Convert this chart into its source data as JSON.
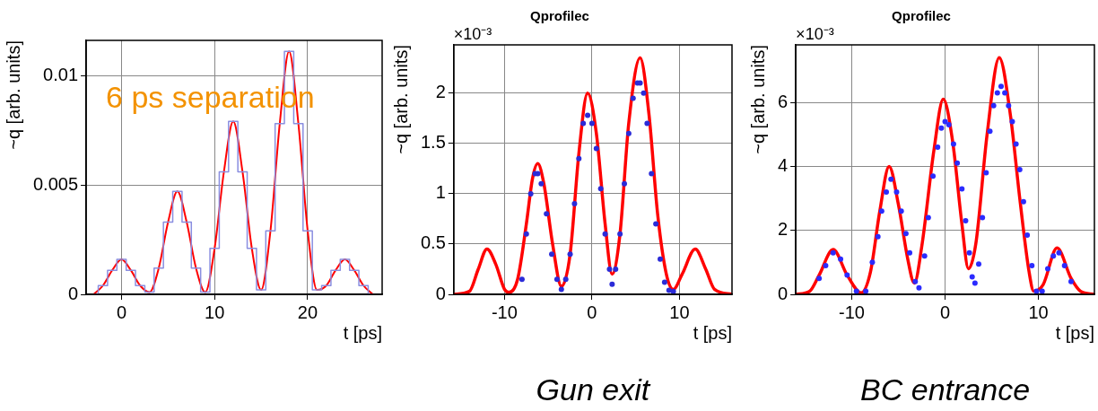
{
  "chart_data": [
    {
      "type": "line",
      "xlabel": "t [ps]",
      "ylabel": "~q [arb. units]",
      "annotations": [
        "6 ps separation"
      ],
      "xlim": [
        -3.8,
        28
      ],
      "xticks": [
        0,
        10,
        20
      ],
      "ylim": [
        0,
        0.0116
      ],
      "yticks": [
        0,
        0.005,
        0.01
      ],
      "grid": true,
      "legend": false,
      "marker": "none",
      "line_style": "solid",
      "series": [
        {
          "type": "step",
          "color": "#8a8ee0",
          "x": [
            -3,
            -2,
            -1,
            0,
            1,
            2,
            3,
            4,
            5,
            6,
            7,
            8,
            9,
            10,
            11,
            12,
            13,
            14,
            15,
            16,
            17,
            18,
            19,
            20,
            21,
            22,
            23,
            24,
            25,
            26,
            27
          ],
          "values": [
            0,
            0.0004,
            0.0011,
            0.0016,
            0.0011,
            0.0004,
            0.0001,
            0.0012,
            0.0033,
            0.0047,
            0.0033,
            0.0012,
            0.0001,
            0.0021,
            0.0056,
            0.0079,
            0.0056,
            0.0021,
            0.0002,
            0.0029,
            0.0078,
            0.0111,
            0.0078,
            0.0029,
            0.0002,
            0.0004,
            0.0011,
            0.0016,
            0.0011,
            0.0004,
            0
          ]
        },
        {
          "type": "line",
          "color": "#ff0000",
          "x": [
            -3,
            -2,
            -1,
            0,
            1,
            2,
            3,
            4,
            5,
            6,
            7,
            8,
            9,
            10,
            11,
            12,
            13,
            14,
            15,
            16,
            17,
            18,
            19,
            20,
            21,
            22,
            23,
            24,
            25,
            26,
            27
          ],
          "values": [
            0,
            0.0004,
            0.0011,
            0.0016,
            0.0011,
            0.0004,
            0.0001,
            0.0012,
            0.0033,
            0.0047,
            0.0033,
            0.0012,
            0.0001,
            0.0021,
            0.0056,
            0.0079,
            0.0056,
            0.0021,
            0.0002,
            0.0029,
            0.0078,
            0.0111,
            0.0078,
            0.0029,
            0.0002,
            0.0004,
            0.0011,
            0.0016,
            0.0011,
            0.0004,
            0
          ]
        }
      ]
    },
    {
      "type": "line",
      "title": "Qprofilec",
      "xlabel": "t [ps]",
      "ylabel": "~q [arb. units]",
      "annotations": [
        "×10⁻³",
        "Gun exit"
      ],
      "xlim": [
        -15.8,
        16
      ],
      "xticks": [
        -10,
        0,
        10
      ],
      "ylim": [
        0,
        2.48
      ],
      "yticks": [
        0,
        0.5,
        1,
        1.5,
        2
      ],
      "grid": true,
      "legend": false,
      "line_style": "solid",
      "series": [
        {
          "type": "scatter",
          "color": "#2b2bd8",
          "marker": "circle",
          "x": [
            -8,
            -7.5,
            -7,
            -6.5,
            -6.2,
            -5.8,
            -5.2,
            -4.6,
            -4,
            -3.5,
            -3,
            -2.5,
            -2,
            -1.5,
            -1,
            -0.5,
            0,
            0.5,
            1,
            1.5,
            2,
            2.3,
            2.7,
            3.2,
            3.7,
            4.2,
            4.7,
            5.2,
            5.5,
            5.9,
            6.3,
            6.8,
            7.3,
            7.8,
            8.3,
            8.8,
            9.3
          ],
          "values": [
            0.15,
            0.6,
            1.0,
            1.2,
            1.2,
            1.1,
            0.8,
            0.4,
            0.15,
            0.05,
            0.15,
            0.4,
            0.9,
            1.35,
            1.7,
            1.78,
            1.7,
            1.45,
            1.05,
            0.6,
            0.25,
            0.1,
            0.25,
            0.6,
            1.1,
            1.6,
            1.95,
            2.1,
            2.1,
            2.0,
            1.7,
            1.2,
            0.7,
            0.35,
            0.12,
            0.04,
            0.03
          ]
        },
        {
          "type": "line",
          "color": "#ff0000",
          "marker": "none",
          "x": [
            -15.8,
            -14,
            -13,
            -12,
            -11,
            -10,
            -9.5,
            -8.5,
            -7.5,
            -6.8,
            -6.2,
            -5.5,
            -4.5,
            -3.5,
            -2.5,
            -1.5,
            -0.5,
            0.5,
            1.5,
            2.3,
            3.2,
            4.2,
            5.5,
            6.5,
            7.5,
            8.5,
            9.3,
            10.3,
            11.8,
            13,
            14,
            16
          ],
          "values": [
            0,
            0.03,
            0.25,
            0.45,
            0.3,
            0.05,
            0.02,
            0.15,
            0.7,
            1.15,
            1.3,
            1.1,
            0.5,
            0.08,
            0.4,
            1.4,
            2.0,
            1.6,
            0.7,
            0.2,
            0.6,
            1.7,
            2.35,
            1.8,
            0.8,
            0.2,
            0.05,
            0.2,
            0.45,
            0.25,
            0.05,
            0
          ]
        }
      ]
    },
    {
      "type": "line",
      "title": "Qprofilec",
      "xlabel": "t [ps]",
      "ylabel": "~q [arb. units]",
      "annotations": [
        "×10⁻³",
        "BC entrance"
      ],
      "xlim": [
        -16,
        16
      ],
      "xticks": [
        -10,
        0,
        10
      ],
      "ylim": [
        0,
        7.8
      ],
      "yticks": [
        0,
        2,
        4,
        6
      ],
      "grid": true,
      "legend": false,
      "line_style": "solid",
      "series": [
        {
          "type": "scatter",
          "color": "#2b2bff",
          "marker": "circle",
          "x": [
            -13.5,
            -12.8,
            -12,
            -11.2,
            -10.5,
            -9.5,
            -8.5,
            -7.8,
            -7.2,
            -6.8,
            -6.3,
            -5.8,
            -5.2,
            -4.7,
            -4.2,
            -3.8,
            -3.2,
            -2.8,
            -2.2,
            -1.8,
            -1.3,
            -0.8,
            -0.4,
            0,
            0.4,
            0.9,
            1.3,
            1.8,
            2.2,
            2.6,
            2.9,
            3.2,
            3.6,
            4,
            4.4,
            4.8,
            5.2,
            5.6,
            6,
            6.4,
            6.8,
            7.2,
            7.6,
            8,
            8.4,
            8.8,
            9.3,
            9.8,
            10.4,
            11,
            11.6,
            12.2,
            12.8,
            13.5
          ],
          "values": [
            0.5,
            0.9,
            1.3,
            1.1,
            0.6,
            0.1,
            0.1,
            1.0,
            1.8,
            2.6,
            3.2,
            3.6,
            3.2,
            2.6,
            1.9,
            1.3,
            0.4,
            0.2,
            1.2,
            2.4,
            3.7,
            4.6,
            5.2,
            5.4,
            5.3,
            4.7,
            4.1,
            3.3,
            2.3,
            1.3,
            0.55,
            0.35,
            0.95,
            2.4,
            3.8,
            5.1,
            5.9,
            6.3,
            6.5,
            6.3,
            5.9,
            5.4,
            4.7,
            3.9,
            2.9,
            1.85,
            0.9,
            0.1,
            0.1,
            0.8,
            1.2,
            1.3,
            0.9,
            0.4
          ]
        },
        {
          "type": "line",
          "color": "#ff0000",
          "marker": "none",
          "x": [
            -16,
            -14.5,
            -13.5,
            -12,
            -10.5,
            -9,
            -8,
            -7,
            -6,
            -5,
            -4,
            -3.3,
            -2.5,
            -1.2,
            -0.2,
            0.8,
            1.8,
            2.5,
            3.3,
            4.5,
            5.8,
            7,
            8,
            9,
            9.5,
            10.5,
            12,
            13.5,
            14.5,
            16
          ],
          "values": [
            0,
            0.1,
            0.6,
            1.4,
            0.6,
            0.05,
            0.7,
            2.6,
            4.0,
            2.8,
            1.1,
            0.35,
            1.5,
            4.5,
            6.1,
            4.8,
            2.2,
            0.8,
            1.6,
            5.0,
            7.4,
            5.6,
            3.0,
            0.7,
            0.1,
            0.3,
            1.45,
            0.5,
            0.1,
            0
          ]
        }
      ]
    }
  ]
}
